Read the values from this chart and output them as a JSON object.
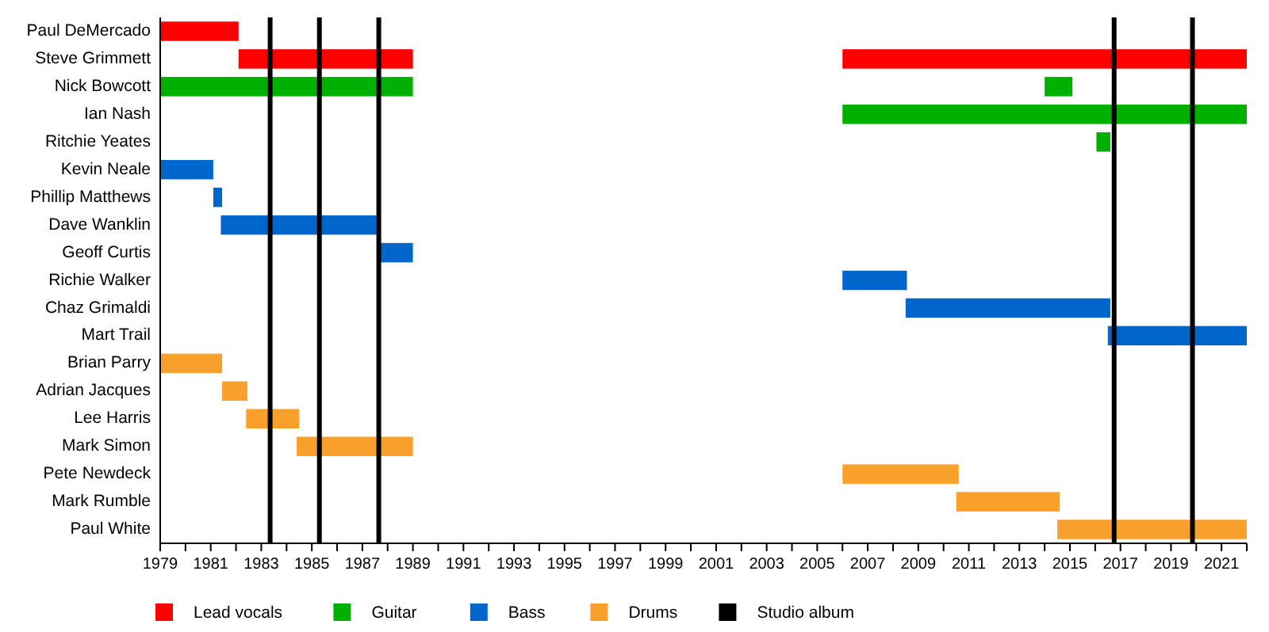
{
  "chart_data": {
    "type": "bar",
    "orientation": "horizontal",
    "grid": false,
    "legend": "bottom",
    "categories": [
      "Paul DeMercado",
      "Steve Grimmett",
      "Nick Bowcott",
      "Ian Nash",
      "Ritchie Yeates",
      "Kevin Neale",
      "Phillip Matthews",
      "Dave Wanklin",
      "Geoff Curtis",
      "Richie Walker",
      "Chaz Grimaldi",
      "Mart Trail",
      "Brian Parry",
      "Adrian Jacques",
      "Lee Harris",
      "Mark Simon",
      "Pete Newdeck",
      "Mark Rumble",
      "Paul White"
    ],
    "xlim": [
      1979,
      2022
    ],
    "xticks": [
      1979,
      {
        "value": 1980,
        "label": null
      },
      1981,
      {
        "value": 1982,
        "label": null
      },
      1983,
      {
        "value": 1984,
        "label": null
      },
      1985,
      {
        "value": 1986,
        "label": null
      },
      1987,
      {
        "value": 1988,
        "label": null
      },
      1989,
      {
        "value": 1990,
        "label": null
      },
      1991,
      {
        "value": 1992,
        "label": null
      },
      1993,
      {
        "value": 1994,
        "label": null
      },
      1995,
      {
        "value": 1996,
        "label": null
      },
      1997,
      {
        "value": 1998,
        "label": null
      },
      1999,
      {
        "value": 2000,
        "label": null
      },
      2001,
      {
        "value": 2002,
        "label": null
      },
      2003,
      {
        "value": 2004,
        "label": null
      },
      2005,
      {
        "value": 2006,
        "label": null
      },
      2007,
      {
        "value": 2008,
        "label": null
      },
      2009,
      {
        "value": 2010,
        "label": null
      },
      2011,
      {
        "value": 2012,
        "label": null
      },
      2013,
      {
        "value": 2014,
        "label": null
      },
      2015,
      {
        "value": 2016,
        "label": null
      },
      2017,
      {
        "value": 2018,
        "label": null
      },
      2019,
      {
        "value": 2020,
        "label": null
      },
      2021,
      {
        "value": 2022,
        "label": null
      }
    ],
    "series": [
      {
        "name": "Lead vocals",
        "color": "#ff0000",
        "base": [
          1979,
          1982.1,
          null,
          null,
          null,
          null,
          null,
          null,
          null,
          null,
          null,
          null,
          null,
          null,
          null,
          null,
          null,
          null,
          null
        ],
        "values": [
          3.1,
          6.9,
          null,
          null,
          null,
          null,
          null,
          null,
          null,
          null,
          null,
          null,
          null,
          null,
          null,
          null,
          null,
          null,
          null
        ]
      },
      {
        "color": "#ff0000",
        "base": [
          null,
          2006,
          null,
          null,
          null,
          null,
          null,
          null,
          null,
          null,
          null,
          null,
          null,
          null,
          null,
          null,
          null,
          null,
          null
        ],
        "values": [
          null,
          16,
          null,
          null,
          null,
          null,
          null,
          null,
          null,
          null,
          null,
          null,
          null,
          null,
          null,
          null,
          null,
          null,
          null
        ]
      },
      {
        "name": "Guitar",
        "color": "#00b000",
        "base": [
          null,
          null,
          1979,
          2006,
          2016.05,
          null,
          null,
          null,
          null,
          null,
          null,
          null,
          null,
          null,
          null,
          null,
          null,
          null,
          null
        ],
        "values": [
          null,
          null,
          10,
          16,
          0.55,
          null,
          null,
          null,
          null,
          null,
          null,
          null,
          null,
          null,
          null,
          null,
          null,
          null,
          null
        ]
      },
      {
        "color": "#00b000",
        "base": [
          null,
          null,
          2014,
          null,
          null,
          null,
          null,
          null,
          null,
          null,
          null,
          null,
          null,
          null,
          null,
          null,
          null,
          null,
          null
        ],
        "values": [
          null,
          null,
          1.1,
          null,
          null,
          null,
          null,
          null,
          null,
          null,
          null,
          null,
          null,
          null,
          null,
          null,
          null,
          null,
          null
        ]
      },
      {
        "name": "Bass",
        "color": "#0066cc",
        "base": [
          null,
          null,
          null,
          null,
          null,
          1979,
          1981.1,
          1981.4,
          1987.7,
          2006,
          2008.5,
          2016.5,
          null,
          null,
          null,
          null,
          null,
          null,
          null
        ],
        "values": [
          null,
          null,
          null,
          null,
          null,
          2.1,
          0.35,
          6.3,
          1.3,
          2.55,
          8.1,
          5.5,
          null,
          null,
          null,
          null,
          null,
          null,
          null
        ]
      },
      {
        "name": "Drums",
        "color": "#f9a02c",
        "base": [
          null,
          null,
          null,
          null,
          null,
          null,
          null,
          null,
          null,
          null,
          null,
          null,
          1979,
          1981.45,
          1982.4,
          1984.4,
          2006,
          2010.5,
          2014.5
        ],
        "values": [
          null,
          null,
          null,
          null,
          null,
          null,
          null,
          null,
          null,
          null,
          null,
          null,
          2.45,
          1.0,
          2.1,
          4.6,
          4.6,
          4.1,
          7.5
        ]
      }
    ],
    "ref_lines": [
      {
        "axis": "x",
        "value": 1983.35,
        "label": "Studio album",
        "color": "#000000"
      },
      {
        "axis": "x",
        "value": 1985.3,
        "color": "#000000"
      },
      {
        "axis": "x",
        "value": 1987.65,
        "color": "#000000"
      },
      {
        "axis": "x",
        "value": 2016.75,
        "color": "#000000"
      },
      {
        "axis": "x",
        "value": 2019.85,
        "color": "#000000"
      }
    ]
  }
}
